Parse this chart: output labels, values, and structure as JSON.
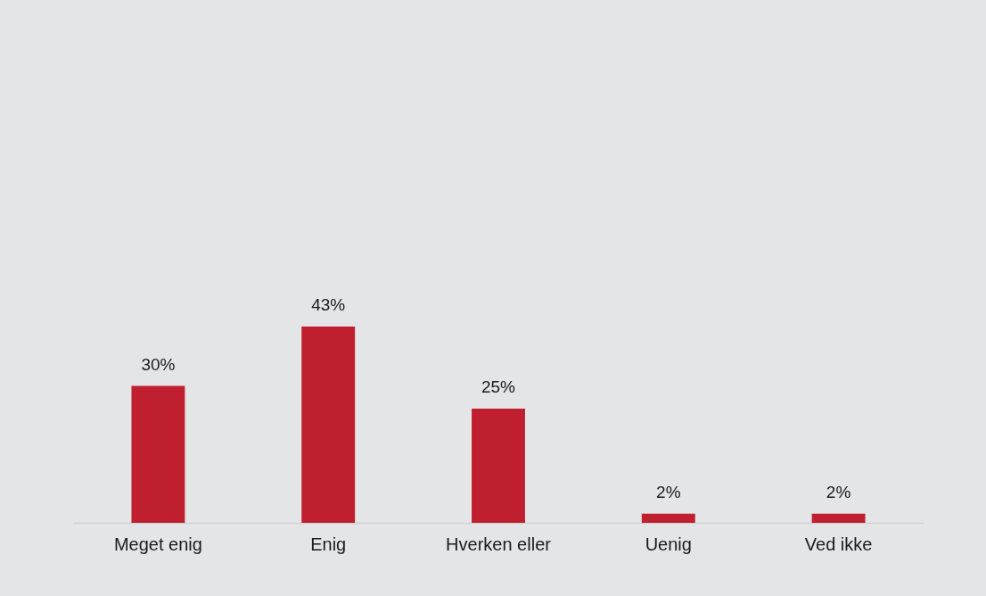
{
  "chart_data": {
    "type": "bar",
    "categories": [
      "Meget enig",
      "Enig",
      "Hverken eller",
      "Uenig",
      "Ved ikke"
    ],
    "values": [
      30,
      43,
      25,
      2,
      2
    ],
    "value_labels": [
      "30%",
      "43%",
      "25%",
      "2%",
      "2%"
    ],
    "color": "#c01f30"
  }
}
